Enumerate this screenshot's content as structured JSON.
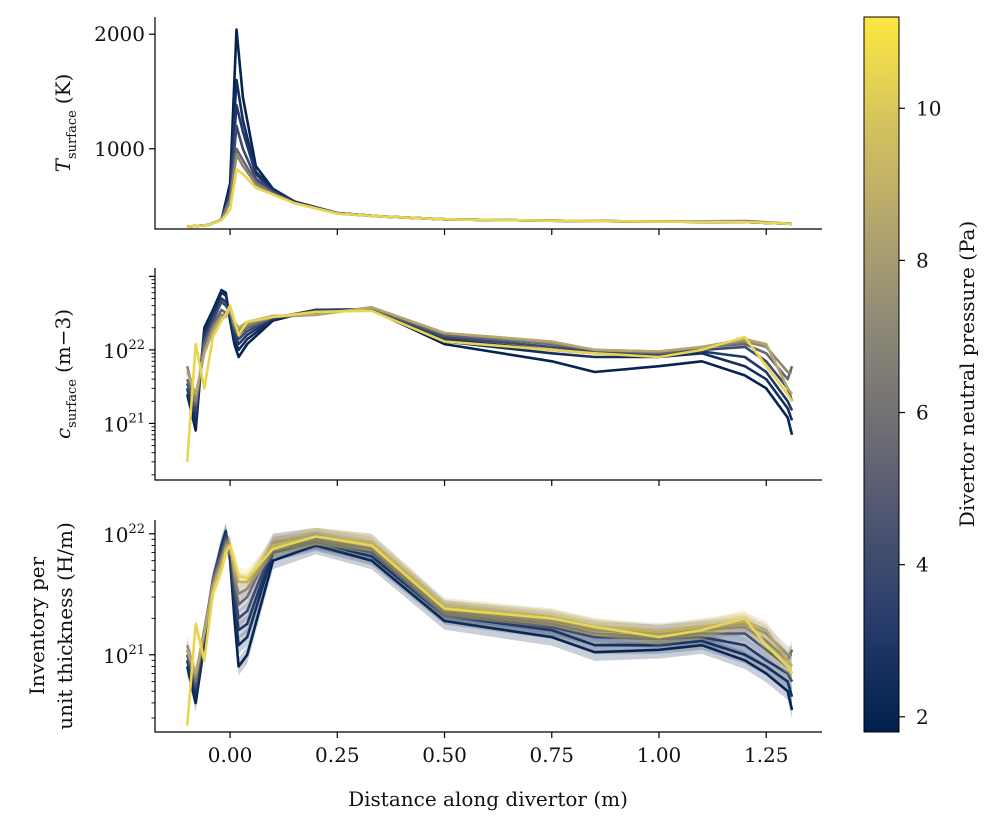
{
  "figure": {
    "xlabel": "Distance along divertor (m)",
    "x_ticks": [
      "0.00",
      "0.25",
      "0.50",
      "0.75",
      "1.00",
      "1.25"
    ],
    "colorbar": {
      "label": "Divertor neutral pressure (Pa)",
      "range": [
        1.8,
        11.2
      ],
      "ticks": [
        "2",
        "4",
        "6",
        "8",
        "10"
      ],
      "colormap": "cividis",
      "stops": [
        "#00204d",
        "#243a6b",
        "#4a5370",
        "#6f6e73",
        "#8f8a77",
        "#b4a66d",
        "#d6c45d",
        "#fde840"
      ]
    }
  },
  "chart_data": [
    {
      "type": "line",
      "panel": "top",
      "ylabel": "T_surface (K)",
      "ylabel_main": "T",
      "ylabel_sub": "surface",
      "ylabel_unit": "(K)",
      "y_scale": "linear",
      "ylim": [
        300,
        2150
      ],
      "y_ticks": [
        "1000",
        "2000"
      ],
      "xlim": [
        -0.175,
        1.38
      ],
      "x": [
        -0.1,
        -0.05,
        -0.02,
        0.0,
        0.015,
        0.03,
        0.06,
        0.1,
        0.15,
        0.25,
        0.35,
        0.5,
        0.75,
        1.0,
        1.2,
        1.31
      ],
      "series": [
        {
          "pressure": 2.0,
          "values": [
            320,
            335,
            380,
            700,
            2040,
            1450,
            850,
            650,
            540,
            440,
            410,
            385,
            372,
            365,
            360,
            345
          ]
        },
        {
          "pressure": 2.5,
          "values": [
            320,
            335,
            380,
            650,
            1600,
            1250,
            800,
            640,
            535,
            440,
            410,
            385,
            372,
            365,
            360,
            345
          ]
        },
        {
          "pressure": 3.0,
          "values": [
            320,
            335,
            380,
            620,
            1380,
            1150,
            780,
            630,
            532,
            438,
            410,
            385,
            372,
            365,
            360,
            345
          ]
        },
        {
          "pressure": 4.0,
          "values": [
            320,
            335,
            380,
            590,
            1200,
            1000,
            740,
            620,
            530,
            437,
            410,
            385,
            372,
            365,
            360,
            345
          ]
        },
        {
          "pressure": 5.5,
          "values": [
            320,
            335,
            380,
            560,
            1000,
            900,
            710,
            610,
            528,
            436,
            410,
            385,
            372,
            365,
            370,
            345
          ]
        },
        {
          "pressure": 7.0,
          "values": [
            320,
            335,
            380,
            540,
            950,
            850,
            690,
            605,
            526,
            435,
            410,
            385,
            372,
            365,
            365,
            345
          ]
        },
        {
          "pressure": 10.5,
          "values": [
            320,
            335,
            375,
            470,
            820,
            780,
            660,
            600,
            525,
            435,
            410,
            385,
            372,
            365,
            360,
            345
          ]
        }
      ]
    },
    {
      "type": "line",
      "panel": "middle",
      "ylabel": "c_surface (m^-3)",
      "ylabel_main": "c",
      "ylabel_sub": "surface",
      "ylabel_unit": "(m−3)",
      "y_scale": "log",
      "ylim": [
        1.7e+20,
        1.3e+23
      ],
      "y_ticks": [
        {
          "base": "10",
          "exp": "21",
          "value": 1e+21
        },
        {
          "base": "10",
          "exp": "22",
          "value": 1e+22
        }
      ],
      "xlim": [
        -0.175,
        1.38
      ],
      "x": [
        -0.1,
        -0.08,
        -0.06,
        -0.04,
        -0.02,
        -0.01,
        0.0,
        0.01,
        0.02,
        0.04,
        0.1,
        0.2,
        0.33,
        0.5,
        0.75,
        0.85,
        1.0,
        1.1,
        1.2,
        1.25,
        1.3,
        1.31
      ],
      "series": [
        {
          "pressure": 2.0,
          "values": [
            2.5e+21,
            8e+20,
            2e+22,
            3.5e+22,
            6.5e+22,
            6e+22,
            2.5e+22,
            1.2e+22,
            8e+21,
            1.2e+22,
            2.5e+22,
            3.5e+22,
            3.5e+22,
            1.2e+22,
            7e+21,
            5e+21,
            6e+21,
            7e+21,
            4.5e+21,
            3e+21,
            1.2e+21,
            7e+20
          ]
        },
        {
          "pressure": 2.5,
          "values": [
            3e+21,
            1e+21,
            1.8e+22,
            3e+22,
            6e+22,
            5.5e+22,
            2.8e+22,
            1.4e+22,
            1e+22,
            1.4e+22,
            2.6e+22,
            3.5e+22,
            3.5e+22,
            1.3e+22,
            9e+21,
            8e+21,
            8e+21,
            9e+21,
            6e+21,
            4e+21,
            1.6e+21,
            1.1e+21
          ]
        },
        {
          "pressure": 3.0,
          "values": [
            3e+21,
            1.2e+21,
            1.5e+22,
            2.8e+22,
            5e+22,
            4.5e+22,
            3e+22,
            1.6e+22,
            1.2e+22,
            1.6e+22,
            2.7e+22,
            3.5e+22,
            3.6e+22,
            1.4e+22,
            1e+22,
            9e+21,
            8.5e+21,
            9.5e+21,
            8e+21,
            5e+21,
            2e+21,
            1.5e+21
          ]
        },
        {
          "pressure": 4.0,
          "values": [
            3.5e+21,
            1.5e+21,
            1.4e+22,
            2.5e+22,
            4.5e+22,
            4e+22,
            3.2e+22,
            1.8e+22,
            1.4e+22,
            1.8e+22,
            2.8e+22,
            3.3e+22,
            3.6e+22,
            1.5e+22,
            1.1e+22,
            9.5e+21,
            9e+21,
            1e+22,
            1.1e+22,
            7e+21,
            3e+21,
            2e+21
          ]
        },
        {
          "pressure": 5.5,
          "values": [
            4e+21,
            1.8e+21,
            1.2e+22,
            2.2e+22,
            3.5e+22,
            3.2e+22,
            3.3e+22,
            2e+22,
            1.6e+22,
            2e+22,
            2.8e+22,
            3.1e+22,
            3.7e+22,
            1.6e+22,
            1.2e+22,
            1e+22,
            9e+21,
            1.1e+22,
            1.2e+22,
            9e+21,
            4e+21,
            6e+21
          ]
        },
        {
          "pressure": 7.0,
          "values": [
            6e+21,
            2e+21,
            1e+22,
            2e+22,
            3e+22,
            3e+22,
            3.5e+22,
            2.2e+22,
            1.8e+22,
            2.2e+22,
            2.8e+22,
            3e+22,
            3.8e+22,
            1.7e+22,
            1.25e+22,
            1e+22,
            9.5e+21,
            1.1e+22,
            1.3e+22,
            1.1e+22,
            5e+21,
            5e+21
          ]
        },
        {
          "pressure": 8.5,
          "values": [
            5e+21,
            2.5e+21,
            9e+21,
            1.8e+22,
            2.8e+22,
            2.8e+22,
            3.6e+22,
            2.4e+22,
            2e+22,
            2.4e+22,
            2.9e+22,
            3e+22,
            3.8e+22,
            1.7e+22,
            1.3e+22,
            1e+22,
            9.5e+21,
            1.1e+22,
            1.4e+22,
            1.2e+22,
            3e+21,
            2.5e+21
          ]
        },
        {
          "pressure": 10.5,
          "values": [
            3e+20,
            1.2e+22,
            3e+21,
            1.5e+22,
            2.5e+22,
            3e+22,
            4e+22,
            2.5e+22,
            1.6e+22,
            2.4e+22,
            2.8e+22,
            3.3e+22,
            3.4e+22,
            1.3e+22,
            1e+22,
            9e+21,
            8e+21,
            1e+22,
            1.5e+22,
            6e+21,
            2.5e+21,
            2e+21
          ]
        }
      ]
    },
    {
      "type": "line",
      "panel": "bottom",
      "ylabel": "Inventory per unit thickness (H/m)",
      "ylabel_line1": "Inventory per",
      "ylabel_line2": "unit thickness (H/m)",
      "y_scale": "log",
      "ylim": [
        2.3e+20,
        1.3e+22
      ],
      "y_ticks": [
        {
          "base": "10",
          "exp": "21",
          "value": 1e+21
        },
        {
          "base": "10",
          "exp": "22",
          "value": 1e+22
        }
      ],
      "xlim": [
        -0.175,
        1.38
      ],
      "x": [
        -0.1,
        -0.08,
        -0.06,
        -0.04,
        -0.02,
        -0.01,
        0.0,
        0.01,
        0.02,
        0.04,
        0.1,
        0.2,
        0.33,
        0.5,
        0.75,
        0.85,
        1.0,
        1.1,
        1.2,
        1.25,
        1.3,
        1.31
      ],
      "series": [
        {
          "pressure": 2.0,
          "values": [
            8e+20,
            4e+20,
            1.2e+21,
            4e+21,
            8e+21,
            1.05e+22,
            6e+21,
            2e+21,
            8e+20,
            1e+21,
            6e+21,
            8e+21,
            6e+21,
            1.9e+21,
            1.4e+21,
            1.05e+21,
            1.1e+21,
            1.2e+21,
            9e+20,
            7e+20,
            5e+20,
            3.5e+20
          ]
        },
        {
          "pressure": 2.5,
          "values": [
            9e+20,
            4.5e+20,
            1.3e+21,
            4e+21,
            8e+21,
            1e+22,
            6.5e+21,
            2.5e+21,
            1.2e+21,
            1.4e+21,
            7e+21,
            8.5e+21,
            6.5e+21,
            2.1e+21,
            1.6e+21,
            1.2e+21,
            1.2e+21,
            1.3e+21,
            1e+21,
            8e+20,
            6e+20,
            4.5e+20
          ]
        },
        {
          "pressure": 3.0,
          "values": [
            9e+20,
            5e+20,
            1.4e+21,
            4.2e+21,
            7.5e+21,
            9.5e+21,
            7e+21,
            3e+21,
            1.6e+21,
            1.8e+21,
            7.5e+21,
            8.8e+21,
            7e+21,
            2.2e+21,
            1.7e+21,
            1.4e+21,
            1.35e+21,
            1.4e+21,
            1.2e+21,
            9e+20,
            7e+20,
            6e+20
          ]
        },
        {
          "pressure": 4.0,
          "values": [
            1e+21,
            5.5e+20,
            1.5e+21,
            4.2e+21,
            7e+21,
            9e+21,
            7.5e+21,
            3.5e+21,
            2e+21,
            2.3e+21,
            8e+21,
            9e+21,
            7.5e+21,
            2.3e+21,
            1.8e+21,
            1.5e+21,
            1.4e+21,
            1.5e+21,
            1.5e+21,
            1.1e+21,
            8e+20,
            7e+20
          ]
        },
        {
          "pressure": 5.5,
          "values": [
            1.1e+21,
            6e+20,
            1.6e+21,
            4e+21,
            6.5e+21,
            8.5e+21,
            8e+21,
            4e+21,
            2.6e+21,
            3e+21,
            8.5e+21,
            9.5e+21,
            8e+21,
            2.4e+21,
            1.9e+21,
            1.6e+21,
            1.5e+21,
            1.6e+21,
            1.7e+21,
            1.3e+21,
            9e+20,
            1.1e+21
          ]
        },
        {
          "pressure": 7.0,
          "values": [
            1.2e+21,
            6.5e+20,
            1.6e+21,
            3.8e+21,
            6e+21,
            8e+21,
            8e+21,
            4.5e+21,
            3.2e+21,
            3.5e+21,
            8.5e+21,
            9.5e+21,
            8.5e+21,
            2.4e+21,
            2e+21,
            1.65e+21,
            1.5e+21,
            1.65e+21,
            1.8e+21,
            1.5e+21,
            1e+21,
            1e+21
          ]
        },
        {
          "pressure": 8.5,
          "values": [
            1.1e+21,
            7e+20,
            1.5e+21,
            3.6e+21,
            5.5e+21,
            7.5e+21,
            8e+21,
            5e+21,
            4e+21,
            4e+21,
            8e+21,
            9.5e+21,
            8.5e+21,
            2.5e+21,
            2.05e+21,
            1.7e+21,
            1.55e+21,
            1.7e+21,
            1.9e+21,
            1.6e+21,
            9e+20,
            8e+20
          ]
        },
        {
          "pressure": 10.5,
          "values": [
            2.6e+20,
            1.8e+21,
            9e+20,
            3.2e+21,
            5e+21,
            7e+21,
            8e+21,
            6e+21,
            4.5e+21,
            4.3e+21,
            7.5e+21,
            9.5e+21,
            8e+21,
            2.4e+21,
            2e+21,
            1.7e+21,
            1.4e+21,
            1.6e+21,
            2e+21,
            1.2e+21,
            8e+20,
            7e+20
          ]
        }
      ]
    }
  ]
}
